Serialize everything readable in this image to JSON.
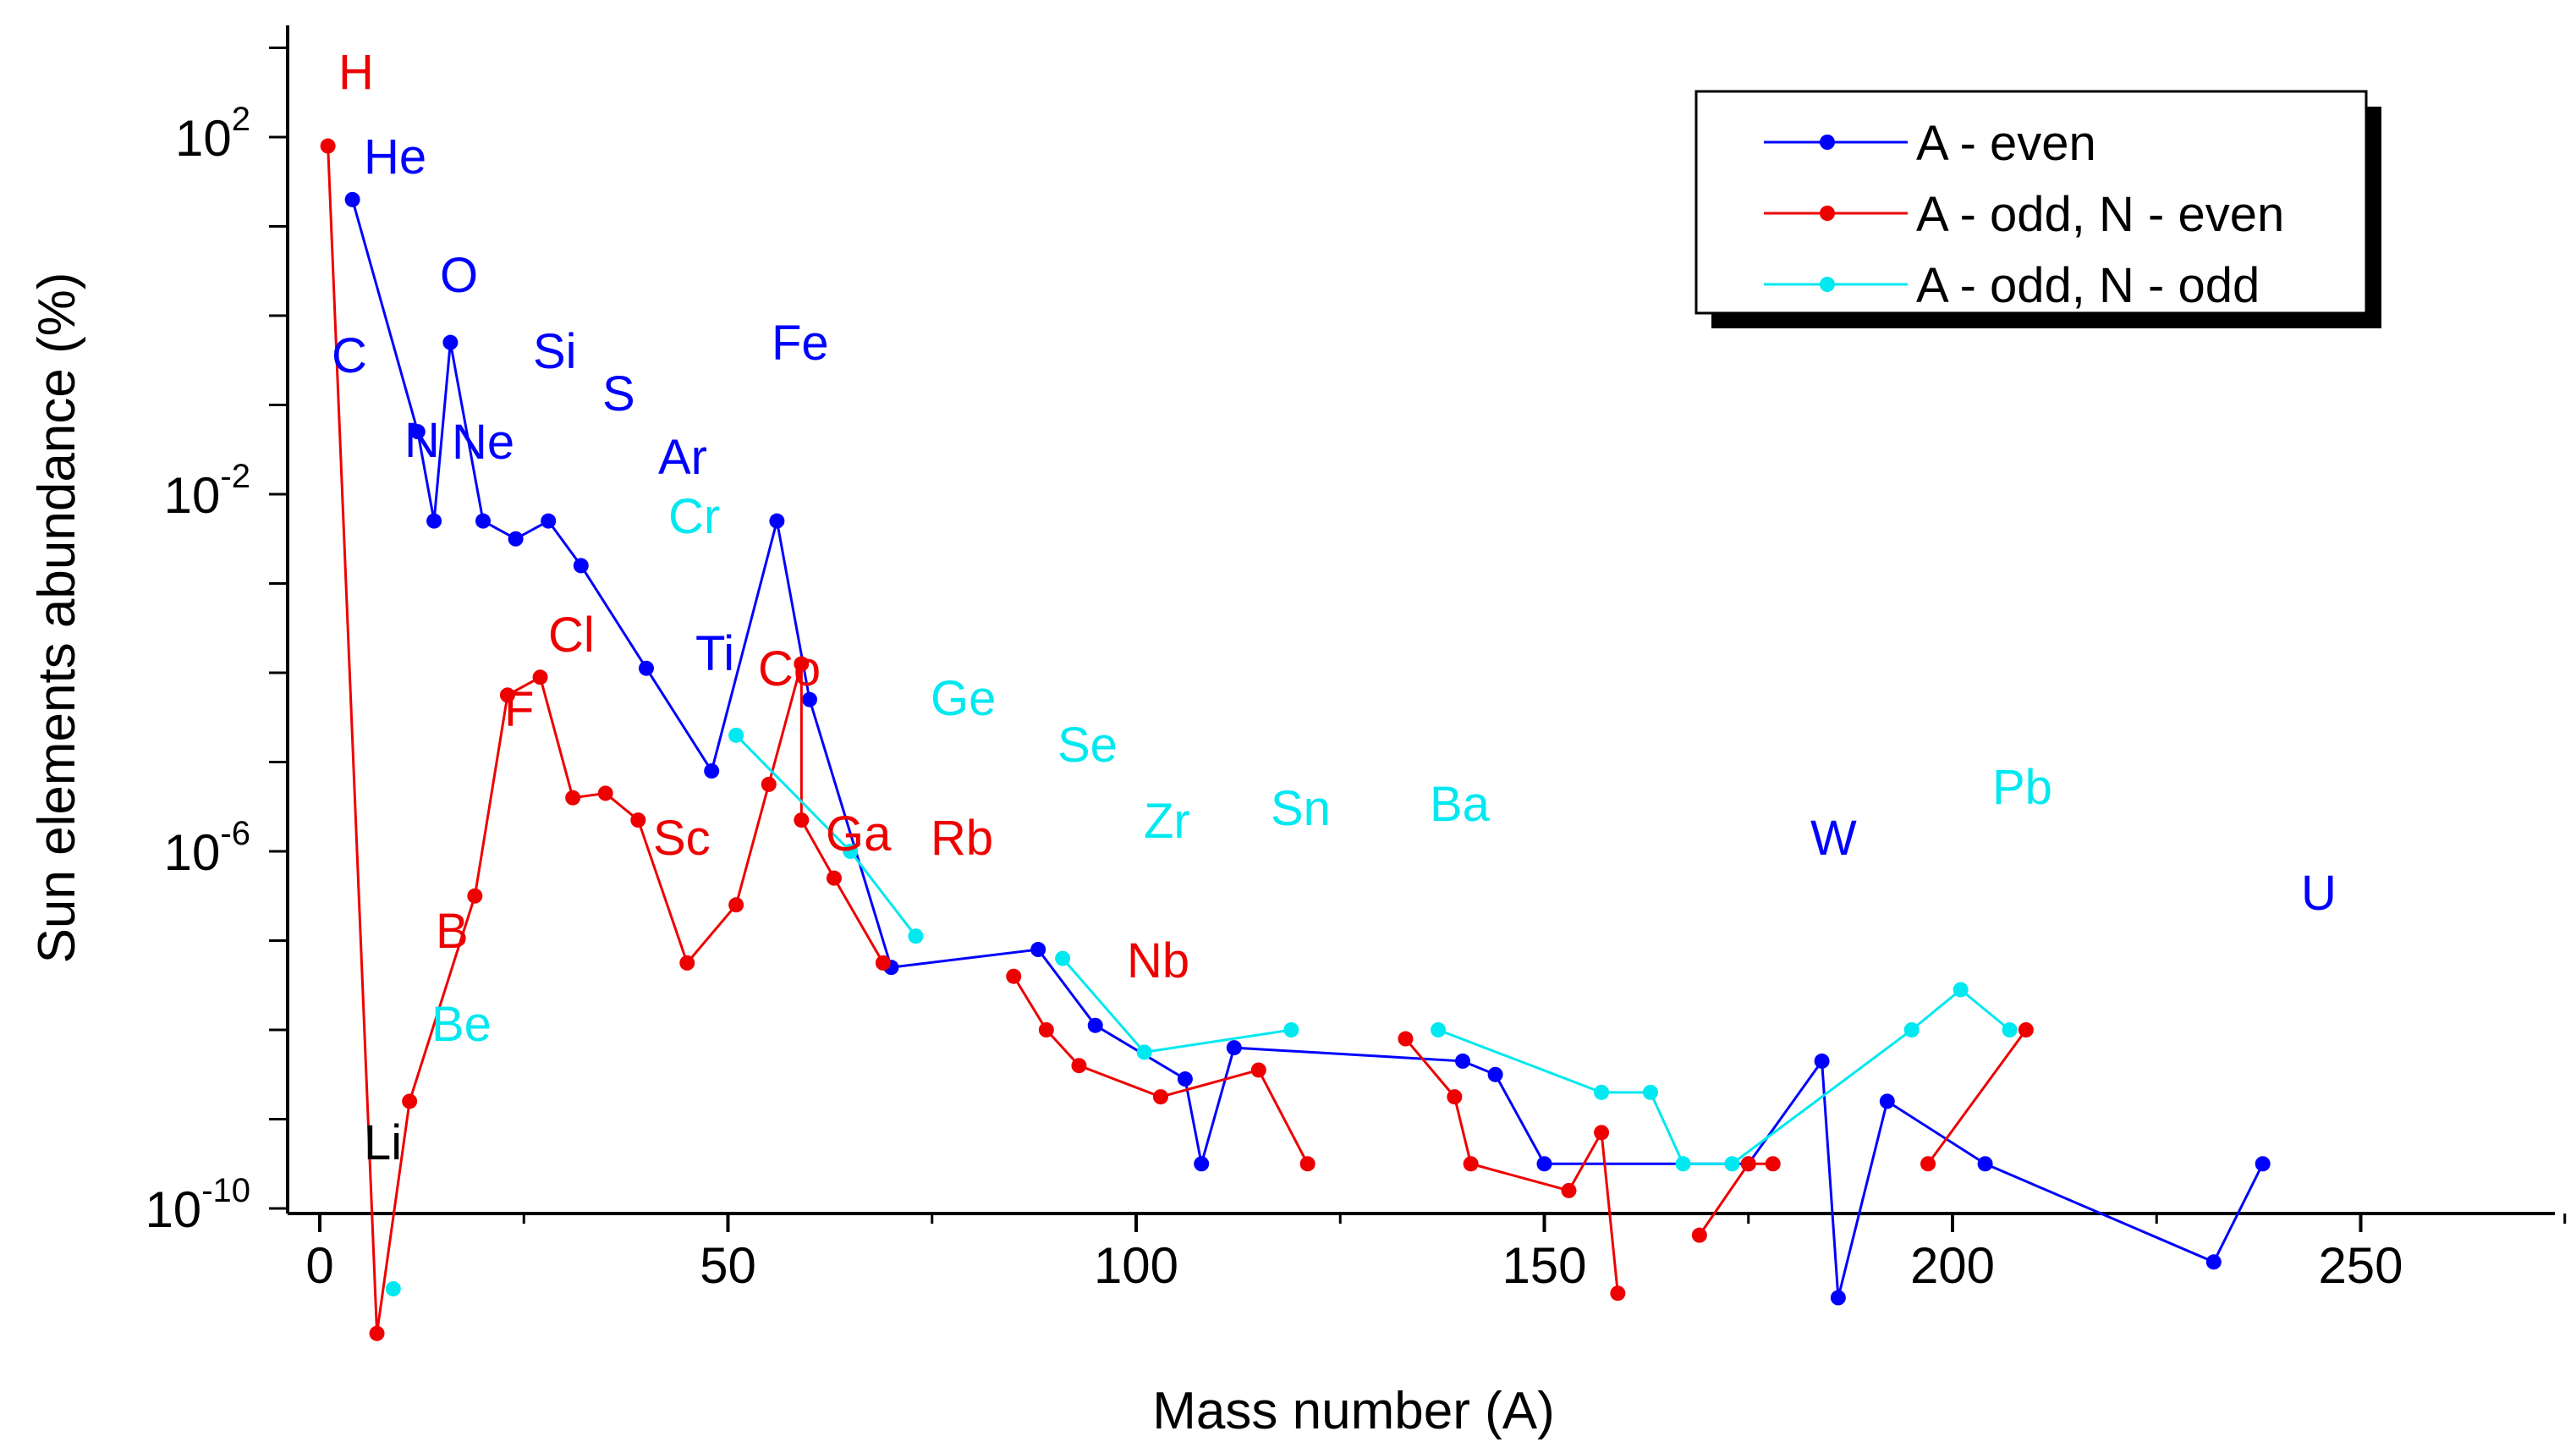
{
  "chart_data": {
    "type": "line",
    "xlabel": "Mass number (A)",
    "ylabel": "Sun elements abundance (%)",
    "xlim": [
      -6,
      275
    ],
    "x_ticks": [
      0,
      50,
      100,
      150,
      200,
      250
    ],
    "y_scale": "log",
    "ylim_exponent": [
      -10,
      3
    ],
    "y_ticks": [
      {
        "exp": 2,
        "base": "10",
        "sup": "2"
      },
      {
        "exp": -2,
        "base": "10",
        "sup": "-2"
      },
      {
        "exp": -6,
        "base": "10",
        "sup": "-6"
      },
      {
        "exp": -10,
        "base": "10",
        "sup": "-10"
      }
    ],
    "legend_position": "top-right",
    "series": [
      {
        "name": "A - even",
        "color": "#0000ff",
        "segments": [
          [
            [
              4,
              1.3
            ],
            [
              12,
              -1.3
            ],
            [
              14,
              -2.3
            ],
            [
              16,
              -0.3
            ],
            [
              20,
              -2.3
            ],
            [
              24,
              -2.5
            ],
            [
              28,
              -2.3
            ],
            [
              32,
              -2.8
            ],
            [
              40,
              -3.95
            ],
            [
              48,
              -5.1
            ],
            [
              56,
              -2.3
            ],
            [
              60,
              -4.3
            ],
            [
              70,
              -7.3
            ],
            [
              88,
              -7.1
            ],
            [
              95,
              -7.95
            ],
            [
              106,
              -8.55
            ],
            [
              108,
              -9.5
            ],
            [
              112,
              -8.2
            ],
            [
              140,
              -8.35
            ],
            [
              144,
              -8.5
            ],
            [
              150,
              -9.5
            ],
            [
              175,
              -9.5
            ],
            [
              184,
              -8.35
            ],
            [
              186,
              -11.0
            ],
            [
              192,
              -8.8
            ],
            [
              204,
              -9.5
            ],
            [
              232,
              -10.6
            ],
            [
              238,
              -9.5
            ]
          ]
        ]
      },
      {
        "name": "A - odd, N - even",
        "color": "#ee0000",
        "segments": [
          [
            [
              1,
              1.9
            ],
            [
              7,
              -11.4
            ],
            [
              11,
              -8.8
            ],
            [
              19,
              -6.5
            ],
            [
              23,
              -4.25
            ],
            [
              27,
              -4.05
            ],
            [
              31,
              -5.4
            ],
            [
              35,
              -5.35
            ],
            [
              39,
              -5.65
            ],
            [
              45,
              -7.25
            ],
            [
              51,
              -6.6
            ],
            [
              55,
              -5.25
            ],
            [
              59,
              -3.9
            ],
            [
              59,
              -5.65
            ],
            [
              63,
              -6.3
            ],
            [
              69,
              -7.25
            ]
          ],
          [
            [
              85,
              -7.4
            ],
            [
              89,
              -8.0
            ],
            [
              93,
              -8.4
            ],
            [
              103,
              -8.75
            ],
            [
              115,
              -8.45
            ],
            [
              121,
              -9.5
            ]
          ],
          [
            [
              133,
              -8.1
            ],
            [
              139,
              -8.75
            ],
            [
              141,
              -9.5
            ],
            [
              153,
              -9.8
            ],
            [
              157,
              -9.15
            ],
            [
              159,
              -10.95
            ]
          ],
          [
            [
              169,
              -10.3
            ],
            [
              175,
              -9.5
            ],
            [
              178,
              -9.5
            ]
          ],
          [
            [
              197,
              -9.5
            ],
            [
              209,
              -8.0
            ]
          ]
        ]
      },
      {
        "name": "A - odd, N - odd",
        "color": "#00e8f0",
        "segments": [
          [
            [
              9,
              -10.9
            ]
          ],
          [
            [
              51,
              -4.7
            ],
            [
              65,
              -6.0
            ],
            [
              73,
              -6.95
            ]
          ],
          [
            [
              91,
              -7.2
            ],
            [
              101,
              -8.25
            ],
            [
              119,
              -8.0
            ]
          ],
          [
            [
              137,
              -8.0
            ],
            [
              157,
              -8.7
            ],
            [
              163,
              -8.7
            ],
            [
              167,
              -9.5
            ],
            [
              173,
              -9.5
            ],
            [
              195,
              -8.0
            ],
            [
              201,
              -7.55
            ],
            [
              207,
              -8.0
            ]
          ]
        ]
      }
    ],
    "labels": [
      {
        "text": "H",
        "color": "#ee0000"
      },
      {
        "text": "He",
        "color": "#0000ff"
      },
      {
        "text": "C",
        "color": "#0000ff"
      },
      {
        "text": "N",
        "color": "#0000ff"
      },
      {
        "text": "O",
        "color": "#0000ff"
      },
      {
        "text": "Ne",
        "color": "#0000ff"
      },
      {
        "text": "Si",
        "color": "#0000ff"
      },
      {
        "text": "S",
        "color": "#0000ff"
      },
      {
        "text": "Ar",
        "color": "#0000ff"
      },
      {
        "text": "Fe",
        "color": "#0000ff"
      },
      {
        "text": "Ti",
        "color": "#0000ff"
      },
      {
        "text": "W",
        "color": "#0000ff"
      },
      {
        "text": "U",
        "color": "#0000ff"
      },
      {
        "text": "Cl",
        "color": "#ee0000"
      },
      {
        "text": "F",
        "color": "#ee0000"
      },
      {
        "text": "Sc",
        "color": "#ee0000"
      },
      {
        "text": "Co",
        "color": "#ee0000"
      },
      {
        "text": "Ga",
        "color": "#ee0000"
      },
      {
        "text": "Rb",
        "color": "#ee0000"
      },
      {
        "text": "Nb",
        "color": "#ee0000"
      },
      {
        "text": "B",
        "color": "#ee0000"
      },
      {
        "text": "Li",
        "color": "#000000"
      },
      {
        "text": "Be",
        "color": "#00e8f0"
      },
      {
        "text": "Cr",
        "color": "#00e8f0"
      },
      {
        "text": "Ge",
        "color": "#00e8f0"
      },
      {
        "text": "Se",
        "color": "#00e8f0"
      },
      {
        "text": "Zr",
        "color": "#00e8f0"
      },
      {
        "text": "Sn",
        "color": "#00e8f0"
      },
      {
        "text": "Ba",
        "color": "#00e8f0"
      },
      {
        "text": "Pb",
        "color": "#00e8f0"
      }
    ]
  }
}
